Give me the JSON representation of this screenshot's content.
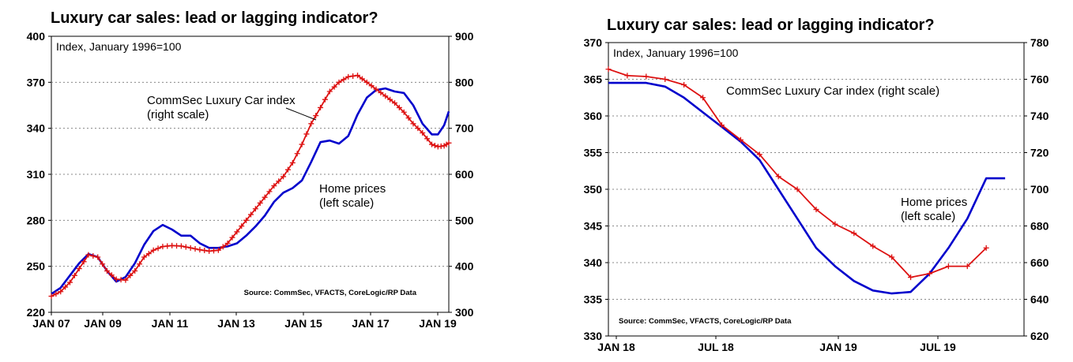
{
  "chart_data": [
    {
      "type": "line",
      "title": "Luxury car sales: lead or lagging indicator?",
      "subtitle": "Index, January 1996=100",
      "source": "Source: CommSec, VFACTS, CoreLogic/RP Data",
      "x_ticks": [
        "JAN 07",
        "JAN 09",
        "JAN 11",
        "JAN 13",
        "JAN 15",
        "JAN 17",
        "JAN 19"
      ],
      "x_range": [
        2007.0,
        2019.85
      ],
      "left_axis": {
        "label": "Home prices",
        "ylim": [
          220,
          400
        ],
        "ticks": [
          220,
          250,
          280,
          310,
          340,
          370,
          400
        ]
      },
      "right_axis": {
        "label": "CommSec Luxury Car index",
        "ylim": [
          300,
          900
        ],
        "ticks": [
          300,
          400,
          500,
          600,
          700,
          800,
          900
        ]
      },
      "annotations": [
        {
          "lines": [
            "CommSec Luxury Car index",
            "(right scale)"
          ]
        },
        {
          "lines": [
            "Home prices",
            "(left scale)"
          ]
        }
      ],
      "series": [
        {
          "name": "Home prices (left scale)",
          "axis": "left",
          "color": "#0000cc",
          "marker": "none",
          "x": [
            2007.0,
            2007.3,
            2007.6,
            2007.9,
            2008.2,
            2008.5,
            2008.8,
            2009.1,
            2009.4,
            2009.7,
            2010.0,
            2010.3,
            2010.6,
            2010.9,
            2011.2,
            2011.5,
            2011.8,
            2012.1,
            2012.4,
            2012.7,
            2013.0,
            2013.3,
            2013.6,
            2013.9,
            2014.2,
            2014.5,
            2014.8,
            2015.1,
            2015.4,
            2015.7,
            2016.0,
            2016.3,
            2016.6,
            2016.9,
            2017.2,
            2017.5,
            2017.8,
            2018.1,
            2018.4,
            2018.7,
            2019.0,
            2019.3,
            2019.5,
            2019.7,
            2019.85
          ],
          "y": [
            232,
            236,
            244,
            252,
            258,
            256,
            247,
            240,
            243,
            252,
            264,
            273,
            277,
            274,
            270,
            270,
            265,
            262,
            262,
            263,
            265,
            270,
            276,
            283,
            292,
            298,
            301,
            306,
            318,
            331,
            332,
            330,
            335,
            349,
            360,
            365,
            366,
            364,
            363,
            355,
            343,
            336,
            336,
            342,
            351
          ]
        },
        {
          "name": "CommSec Luxury Car index (right scale)",
          "axis": "right",
          "color": "#dd1111",
          "marker": "plus",
          "x": [
            2007.0,
            2007.3,
            2007.6,
            2007.9,
            2008.2,
            2008.5,
            2008.8,
            2009.1,
            2009.4,
            2009.7,
            2010.0,
            2010.3,
            2010.6,
            2010.9,
            2011.2,
            2011.5,
            2011.8,
            2012.1,
            2012.4,
            2012.7,
            2013.0,
            2013.3,
            2013.6,
            2013.9,
            2014.2,
            2014.5,
            2014.8,
            2015.1,
            2015.4,
            2015.7,
            2016.0,
            2016.3,
            2016.6,
            2016.9,
            2017.2,
            2017.5,
            2017.8,
            2018.1,
            2018.4,
            2018.7,
            2019.0,
            2019.3,
            2019.5,
            2019.7,
            2019.85
          ],
          "y": [
            335,
            345,
            365,
            395,
            425,
            420,
            390,
            372,
            370,
            390,
            420,
            435,
            443,
            445,
            444,
            440,
            436,
            433,
            435,
            450,
            475,
            500,
            525,
            550,
            575,
            595,
            625,
            665,
            710,
            745,
            780,
            800,
            812,
            815,
            800,
            785,
            770,
            755,
            735,
            710,
            690,
            665,
            660,
            662,
            668
          ]
        }
      ]
    },
    {
      "type": "line",
      "title": "Luxury car sales: lead or lagging indicator?",
      "subtitle": "Index, January 1996=100",
      "source": "Source: CommSec, VFACTS, CoreLogic/RP Data",
      "x_ticks": [
        "JAN 18",
        "JUL 18",
        "JAN 19",
        "JUL 19"
      ],
      "x_range": [
        0,
        22
      ],
      "left_axis": {
        "label": "Home prices",
        "ylim": [
          330,
          370
        ],
        "ticks": [
          330,
          335,
          340,
          345,
          350,
          355,
          360,
          365,
          370
        ]
      },
      "right_axis": {
        "label": "CommSec Luxury Car index",
        "ylim": [
          620,
          780
        ],
        "ticks": [
          620,
          640,
          660,
          680,
          700,
          720,
          740,
          760,
          780
        ]
      },
      "annotations": [
        {
          "lines": [
            "CommSec Luxury Car index (right scale)"
          ]
        },
        {
          "lines": [
            "Home prices",
            "(left scale)"
          ]
        }
      ],
      "series": [
        {
          "name": "Home prices (left scale)",
          "axis": "left",
          "color": "#0000cc",
          "marker": "none",
          "x": [
            0,
            1,
            2,
            3,
            4,
            5,
            6,
            7,
            8,
            9,
            10,
            11,
            12,
            13,
            14,
            15,
            16,
            17,
            18,
            19,
            20,
            21
          ],
          "y": [
            364.5,
            364.5,
            364.5,
            364.0,
            362.5,
            360.5,
            358.5,
            356.5,
            354.0,
            350.0,
            346.0,
            342.0,
            339.5,
            337.5,
            336.2,
            335.8,
            336.0,
            338.5,
            342.0,
            346.0,
            351.5,
            351.5
          ]
        },
        {
          "name": "CommSec Luxury Car index (right scale)",
          "axis": "right",
          "color": "#dd1111",
          "marker": "plus",
          "x": [
            0,
            1,
            2,
            3,
            4,
            5,
            6,
            7,
            8,
            9,
            10,
            11,
            12,
            13,
            14,
            15,
            16,
            17,
            18,
            19,
            20
          ],
          "y": [
            765.5,
            762,
            761.5,
            760,
            757,
            750,
            735,
            727,
            719,
            707,
            700,
            689,
            681,
            676,
            669,
            663,
            652,
            654,
            658,
            658,
            668
          ]
        }
      ]
    }
  ]
}
